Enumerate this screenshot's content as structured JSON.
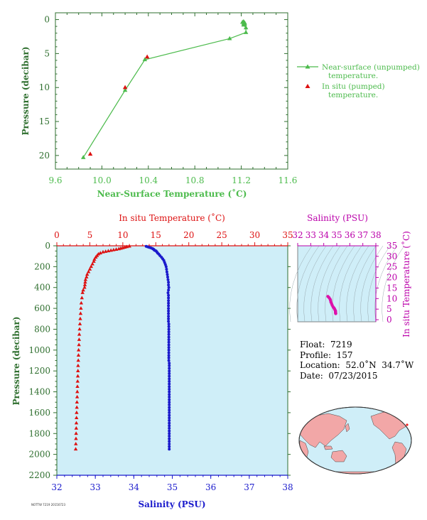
{
  "colors": {
    "near_surface": "#4cbb4c",
    "in_situ_temp": "#dd1111",
    "salinity": "#1a1acc",
    "ts_pink": "#dd11aa",
    "plot_bg": "#cfeef8",
    "axis_green": "#2f6f2f",
    "ts_axis": "#bb00aa"
  },
  "chart_data": [
    {
      "type": "line",
      "xlabel": "Near-Surface Temperature (˚C)",
      "ylabel": "Pressure (decibar)",
      "xlim": [
        9.6,
        11.6
      ],
      "ylim": [
        22,
        -1
      ],
      "x_ticks": [
        "9.6",
        "10.0",
        "10.4",
        "10.8",
        "11.2",
        "11.6"
      ],
      "y_ticks": [
        "0",
        "5",
        "10",
        "15",
        "20"
      ],
      "grid": false,
      "legend_position": "right",
      "series": [
        {
          "name": "Near-surface (unpumped) temperature.",
          "marker": "triangle",
          "line": true,
          "points": [
            [
              11.22,
              0.3
            ],
            [
              11.21,
              0.4
            ],
            [
              11.23,
              0.5
            ],
            [
              11.22,
              0.6
            ],
            [
              11.23,
              0.7
            ],
            [
              11.22,
              0.8
            ],
            [
              11.24,
              1.2
            ],
            [
              11.24,
              1.9
            ],
            [
              11.1,
              2.8
            ],
            [
              10.37,
              5.9
            ],
            [
              10.2,
              10.4
            ],
            [
              9.84,
              20.3
            ]
          ]
        },
        {
          "name": "In situ (pumped) temperature.",
          "marker": "triangle",
          "line": false,
          "points": [
            [
              10.39,
              5.5
            ],
            [
              10.2,
              10.0
            ],
            [
              9.9,
              19.8
            ]
          ]
        }
      ]
    },
    {
      "type": "line",
      "top_xlabel": "In situ Temperature (˚C)",
      "bottom_xlabel": "Salinity (PSU)",
      "ylabel": "Pressure (decibar)",
      "temp_xlim": [
        0,
        35
      ],
      "sal_xlim": [
        32,
        38
      ],
      "ylim": [
        2200,
        0
      ],
      "temp_ticks": [
        "0",
        "5",
        "10",
        "15",
        "20",
        "25",
        "30",
        "35"
      ],
      "sal_ticks": [
        "32",
        "33",
        "34",
        "35",
        "36",
        "37",
        "38"
      ],
      "y_ticks": [
        "0",
        "200",
        "400",
        "600",
        "800",
        "1000",
        "1200",
        "1400",
        "1600",
        "1800",
        "2000",
        "2200"
      ],
      "series": [
        {
          "name": "In situ Temperature",
          "axis": "temperature",
          "marker": "triangle",
          "points": [
            [
              11.0,
              5
            ],
            [
              10.6,
              10
            ],
            [
              10.3,
              15
            ],
            [
              10.0,
              20
            ],
            [
              9.7,
              25
            ],
            [
              9.4,
              30
            ],
            [
              9.0,
              35
            ],
            [
              8.6,
              40
            ],
            [
              8.2,
              45
            ],
            [
              7.8,
              50
            ],
            [
              7.4,
              55
            ],
            [
              7.0,
              60
            ],
            [
              6.6,
              70
            ],
            [
              6.3,
              80
            ],
            [
              6.1,
              95
            ],
            [
              5.9,
              110
            ],
            [
              5.7,
              130
            ],
            [
              5.6,
              150
            ],
            [
              5.4,
              175
            ],
            [
              5.2,
              200
            ],
            [
              5.0,
              225
            ],
            [
              4.8,
              250
            ],
            [
              4.6,
              275
            ],
            [
              4.5,
              300
            ],
            [
              4.35,
              325
            ],
            [
              4.3,
              350
            ],
            [
              4.25,
              375
            ],
            [
              4.2,
              400
            ],
            [
              4.0,
              425
            ],
            [
              3.9,
              450
            ],
            [
              3.8,
              500
            ],
            [
              3.7,
              550
            ],
            [
              3.65,
              600
            ],
            [
              3.6,
              650
            ],
            [
              3.55,
              700
            ],
            [
              3.5,
              750
            ],
            [
              3.45,
              800
            ],
            [
              3.4,
              850
            ],
            [
              3.38,
              900
            ],
            [
              3.35,
              950
            ],
            [
              3.3,
              1000
            ],
            [
              3.28,
              1050
            ],
            [
              3.25,
              1100
            ],
            [
              3.22,
              1150
            ],
            [
              3.2,
              1200
            ],
            [
              3.18,
              1250
            ],
            [
              3.15,
              1300
            ],
            [
              3.12,
              1350
            ],
            [
              3.1,
              1400
            ],
            [
              3.08,
              1450
            ],
            [
              3.05,
              1500
            ],
            [
              3.03,
              1550
            ],
            [
              3.0,
              1600
            ],
            [
              2.98,
              1650
            ],
            [
              2.96,
              1700
            ],
            [
              2.94,
              1750
            ],
            [
              2.92,
              1800
            ],
            [
              2.9,
              1850
            ],
            [
              2.88,
              1900
            ],
            [
              2.86,
              1950
            ]
          ]
        },
        {
          "name": "Salinity",
          "axis": "salinity",
          "marker": "dot",
          "points": [
            [
              34.32,
              5
            ],
            [
              34.36,
              10
            ],
            [
              34.4,
              15
            ],
            [
              34.44,
              20
            ],
            [
              34.48,
              25
            ],
            [
              34.5,
              30
            ],
            [
              34.52,
              35
            ],
            [
              34.53,
              40
            ],
            [
              34.55,
              45
            ],
            [
              34.58,
              50
            ],
            [
              34.6,
              60
            ],
            [
              34.62,
              70
            ],
            [
              34.65,
              80
            ],
            [
              34.68,
              95
            ],
            [
              34.72,
              110
            ],
            [
              34.75,
              125
            ],
            [
              34.78,
              140
            ],
            [
              34.8,
              160
            ],
            [
              34.82,
              180
            ],
            [
              34.84,
              200
            ],
            [
              34.85,
              225
            ],
            [
              34.86,
              250
            ],
            [
              34.87,
              275
            ],
            [
              34.88,
              300
            ],
            [
              34.89,
              325
            ],
            [
              34.9,
              350
            ],
            [
              34.9,
              375
            ],
            [
              34.91,
              400
            ],
            [
              34.9,
              425
            ],
            [
              34.89,
              450
            ],
            [
              34.9,
              475
            ],
            [
              34.9,
              500
            ],
            [
              34.9,
              525
            ],
            [
              34.9,
              550
            ],
            [
              34.9,
              575
            ],
            [
              34.9,
              600
            ],
            [
              34.9,
              625
            ],
            [
              34.9,
              650
            ],
            [
              34.9,
              675
            ],
            [
              34.9,
              700
            ],
            [
              34.9,
              725
            ],
            [
              34.91,
              750
            ],
            [
              34.91,
              775
            ],
            [
              34.91,
              800
            ],
            [
              34.91,
              825
            ],
            [
              34.91,
              850
            ],
            [
              34.91,
              875
            ],
            [
              34.91,
              900
            ],
            [
              34.91,
              925
            ],
            [
              34.91,
              950
            ],
            [
              34.91,
              975
            ],
            [
              34.91,
              1000
            ],
            [
              34.91,
              1025
            ],
            [
              34.91,
              1050
            ],
            [
              34.91,
              1075
            ],
            [
              34.91,
              1100
            ],
            [
              34.92,
              1125
            ],
            [
              34.92,
              1150
            ],
            [
              34.92,
              1175
            ],
            [
              34.92,
              1200
            ],
            [
              34.92,
              1225
            ],
            [
              34.92,
              1250
            ],
            [
              34.92,
              1275
            ],
            [
              34.92,
              1300
            ],
            [
              34.92,
              1325
            ],
            [
              34.92,
              1350
            ],
            [
              34.92,
              1375
            ],
            [
              34.92,
              1400
            ],
            [
              34.92,
              1425
            ],
            [
              34.92,
              1450
            ],
            [
              34.92,
              1475
            ],
            [
              34.92,
              1500
            ],
            [
              34.92,
              1525
            ],
            [
              34.92,
              1550
            ],
            [
              34.92,
              1575
            ],
            [
              34.92,
              1600
            ],
            [
              34.92,
              1625
            ],
            [
              34.92,
              1650
            ],
            [
              34.92,
              1675
            ],
            [
              34.92,
              1700
            ],
            [
              34.92,
              1725
            ],
            [
              34.92,
              1750
            ],
            [
              34.92,
              1775
            ],
            [
              34.92,
              1800
            ],
            [
              34.92,
              1825
            ],
            [
              34.92,
              1850
            ],
            [
              34.92,
              1875
            ],
            [
              34.92,
              1900
            ],
            [
              34.92,
              1925
            ],
            [
              34.92,
              1950
            ]
          ]
        }
      ]
    },
    {
      "type": "scatter",
      "top_xlabel": "Salinity (PSU)",
      "right_ylabel": "In situ Temperature (˚C)",
      "xlim": [
        32,
        38
      ],
      "ylim": [
        -1,
        35
      ],
      "x_ticks": [
        "32",
        "33",
        "34",
        "35",
        "36",
        "37",
        "38"
      ],
      "y_ticks": [
        "0",
        "5",
        "10",
        "15",
        "20",
        "25",
        "30",
        "35"
      ],
      "points": [
        [
          34.32,
          11.0
        ],
        [
          34.4,
          10.5
        ],
        [
          34.48,
          9.8
        ],
        [
          34.52,
          9.2
        ],
        [
          34.55,
          8.4
        ],
        [
          34.6,
          7.6
        ],
        [
          34.65,
          6.8
        ],
        [
          34.72,
          6.0
        ],
        [
          34.78,
          5.6
        ],
        [
          34.82,
          5.2
        ],
        [
          34.85,
          4.8
        ],
        [
          34.88,
          4.4
        ],
        [
          34.9,
          4.2
        ],
        [
          34.9,
          3.8
        ],
        [
          34.9,
          3.5
        ],
        [
          34.91,
          3.3
        ],
        [
          34.92,
          3.0
        ],
        [
          34.92,
          2.9
        ]
      ]
    }
  ],
  "float_info": {
    "float": "Float:  7219",
    "profile": "Profile:  157",
    "location": "Location:  52.0˚N  34.7˚W",
    "date": "Date:  07/23/2015"
  },
  "map": {
    "type": "world map",
    "marker_color": "#ee2222"
  },
  "footer": {
    "text": "NOTTW 7219 20150723"
  }
}
